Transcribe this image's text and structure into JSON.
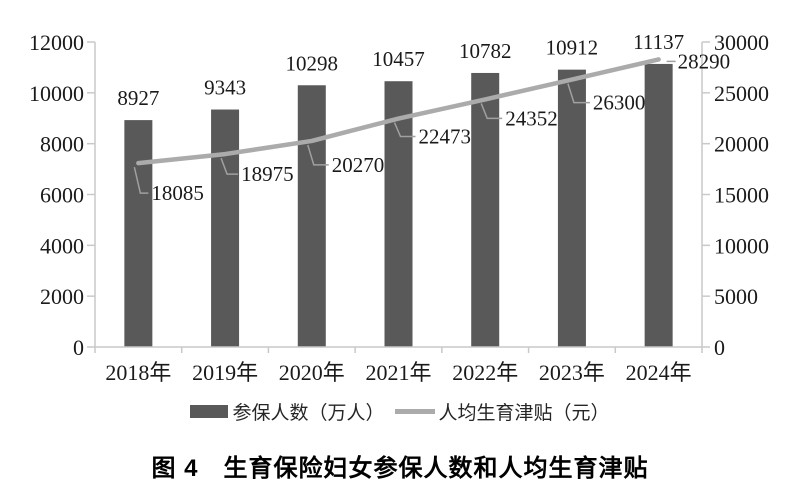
{
  "caption": "图 4　生育保险妇女参保人数和人均生育津贴",
  "legend": {
    "items": [
      {
        "label": "参保人数（万人）",
        "swatch": "bar"
      },
      {
        "label": "人均生育津贴（元）",
        "swatch": "line"
      }
    ]
  },
  "colors": {
    "bar": "#595959",
    "line": "#ababab",
    "leader": "#a0a0a0",
    "axis": "#c9c9c9",
    "text": "#1a1a1a"
  },
  "chart_data": {
    "type": "bar",
    "subtype": "combo-bar-line",
    "title": "图 4　生育保险妇女参保人数和人均生育津贴",
    "categories": [
      "2018年",
      "2019年",
      "2020年",
      "2021年",
      "2022年",
      "2023年",
      "2024年"
    ],
    "series": [
      {
        "name": "参保人数（万人）",
        "chart": "bar",
        "axis": "left",
        "values": [
          8927,
          9343,
          10298,
          10457,
          10782,
          10912,
          11137
        ],
        "color": "#595959"
      },
      {
        "name": "人均生育津贴（元）",
        "chart": "line",
        "axis": "right",
        "values": [
          18085,
          18975,
          20270,
          22473,
          24352,
          26300,
          28290
        ],
        "color": "#ababab"
      }
    ],
    "left_axis": {
      "min": 0,
      "max": 12000,
      "step": 2000,
      "ticks": [
        "0",
        "2000",
        "4000",
        "6000",
        "8000",
        "10000",
        "12000"
      ]
    },
    "right_axis": {
      "min": 0,
      "max": 30000,
      "step": 5000,
      "ticks": [
        "0",
        "5000",
        "10000",
        "15000",
        "20000",
        "25000",
        "30000"
      ]
    },
    "xlabel": "",
    "ylabel": "",
    "grid": false,
    "data_labels": true,
    "legend_position": "bottom"
  }
}
